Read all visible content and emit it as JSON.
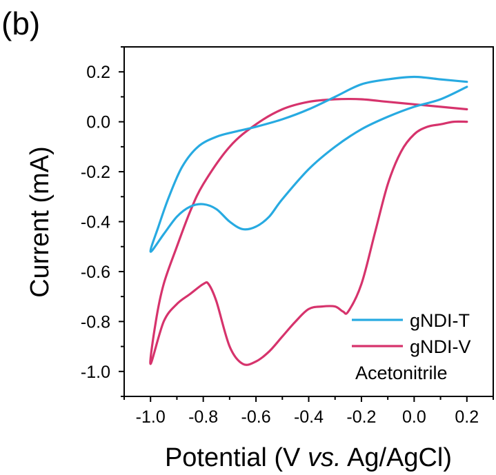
{
  "chart_data": {
    "type": "line",
    "panel_label": "(b)",
    "xlabel_main": "Potential (V ",
    "xlabel_italic": "vs.",
    "xlabel_tail": " Ag/AgCl)",
    "ylabel": "Current (mA)",
    "xlim": [
      -1.1,
      0.3
    ],
    "ylim": [
      -1.1,
      0.3
    ],
    "x_ticks": [
      -1.0,
      -0.8,
      -0.6,
      -0.4,
      -0.2,
      0.0,
      0.2
    ],
    "x_tick_labels": [
      "-1.0",
      "-0.8",
      "-0.6",
      "-0.4",
      "-0.2",
      "0.0",
      "0.2"
    ],
    "y_ticks": [
      0.2,
      0.0,
      -0.2,
      -0.4,
      -0.6,
      -0.8,
      -1.0
    ],
    "y_tick_labels": [
      "0.2",
      "0.0",
      "-0.2",
      "-0.4",
      "-0.6",
      "-0.8",
      "-1.0"
    ],
    "annotation": "Acetonitrile",
    "legend_position": "bottom-right",
    "series": [
      {
        "name": "gNDI-T",
        "color": "#27aae1",
        "x": [
          0.2,
          0.1,
          0.0,
          -0.1,
          -0.2,
          -0.3,
          -0.4,
          -0.5,
          -0.55,
          -0.6,
          -0.65,
          -0.7,
          -0.75,
          -0.8,
          -0.85,
          -0.9,
          -0.95,
          -1.0,
          -0.97,
          -0.93,
          -0.88,
          -0.82,
          -0.75,
          -0.68,
          -0.6,
          -0.5,
          -0.4,
          -0.3,
          -0.2,
          -0.1,
          0.0,
          0.1,
          0.2
        ],
        "y": [
          0.14,
          0.09,
          0.06,
          0.02,
          -0.03,
          -0.1,
          -0.19,
          -0.31,
          -0.38,
          -0.42,
          -0.43,
          -0.4,
          -0.35,
          -0.33,
          -0.34,
          -0.38,
          -0.45,
          -0.52,
          -0.42,
          -0.3,
          -0.18,
          -0.1,
          -0.06,
          -0.04,
          -0.02,
          0.01,
          0.05,
          0.1,
          0.15,
          0.17,
          0.18,
          0.17,
          0.16
        ]
      },
      {
        "name": "gNDI-V",
        "color": "#d6336c",
        "x": [
          0.2,
          0.15,
          0.1,
          0.05,
          0.0,
          -0.05,
          -0.1,
          -0.15,
          -0.2,
          -0.25,
          -0.27,
          -0.3,
          -0.35,
          -0.4,
          -0.45,
          -0.5,
          -0.55,
          -0.6,
          -0.65,
          -0.7,
          -0.75,
          -0.78,
          -0.8,
          -0.85,
          -0.9,
          -0.95,
          -1.0,
          -0.98,
          -0.95,
          -0.9,
          -0.85,
          -0.8,
          -0.7,
          -0.6,
          -0.5,
          -0.4,
          -0.3,
          -0.2,
          -0.1,
          0.0,
          0.1,
          0.2
        ],
        "y": [
          0.0,
          0.0,
          -0.01,
          -0.02,
          -0.05,
          -0.12,
          -0.25,
          -0.45,
          -0.65,
          -0.76,
          -0.76,
          -0.74,
          -0.74,
          -0.75,
          -0.8,
          -0.86,
          -0.92,
          -0.96,
          -0.97,
          -0.9,
          -0.72,
          -0.65,
          -0.65,
          -0.69,
          -0.73,
          -0.8,
          -0.97,
          -0.8,
          -0.65,
          -0.5,
          -0.36,
          -0.25,
          -0.1,
          -0.01,
          0.05,
          0.08,
          0.09,
          0.09,
          0.08,
          0.07,
          0.06,
          0.05
        ]
      }
    ]
  }
}
